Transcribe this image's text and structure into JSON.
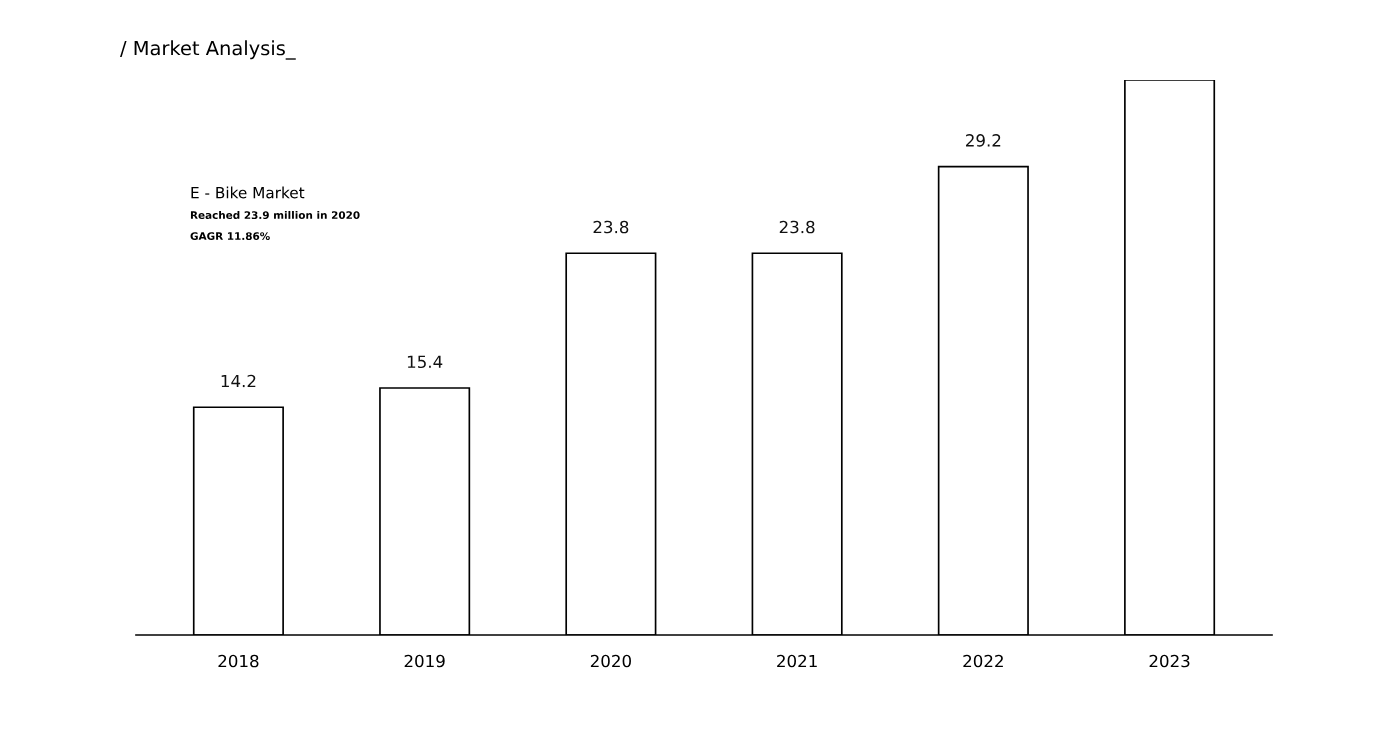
{
  "chart_data": {
    "type": "bar",
    "title": "/ Market Analysis_",
    "subtitle": "E - Bike Market",
    "annotations": [
      "Reached 23.9 million in 2020",
      "GAGR 11.86%"
    ],
    "categories": [
      "2018",
      "2019",
      "2020",
      "2021",
      "2022",
      "2023"
    ],
    "values": [
      14.2,
      15.4,
      23.8,
      23.8,
      29.2,
      34.6
    ],
    "value_labels": [
      "14.2",
      "15.4",
      "23.8",
      "23.8",
      "29.2",
      null
    ],
    "color": "#ffffff",
    "grid": false,
    "legend": false
  }
}
